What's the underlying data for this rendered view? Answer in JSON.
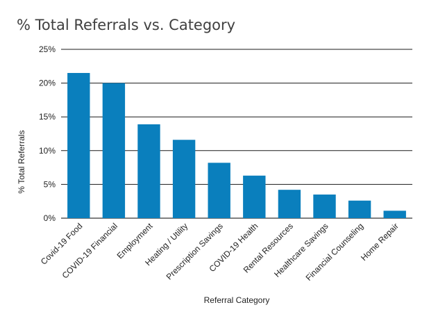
{
  "chart_data": {
    "type": "bar",
    "title": "% Total Referrals vs. Category",
    "xlabel": "Referral Category",
    "ylabel": "% Total Referrals",
    "ylim": [
      0,
      25
    ],
    "yticks": [
      "0%",
      "5%",
      "10%",
      "15%",
      "20%",
      "25%"
    ],
    "grid": true,
    "legend": "none",
    "bar_color": "#0a7fbd",
    "categories": [
      "Covid-19 Food",
      "COVID-19 Financial",
      "Employment",
      "Heating / Utility",
      "Prescription Savings",
      "COVID-19 Health",
      "Rental Resources",
      "Healthcare Savings",
      "Financial Counseling",
      "Home Repair"
    ],
    "values": [
      21.5,
      20.0,
      13.9,
      11.6,
      8.2,
      6.3,
      4.2,
      3.5,
      2.6,
      1.1
    ]
  }
}
